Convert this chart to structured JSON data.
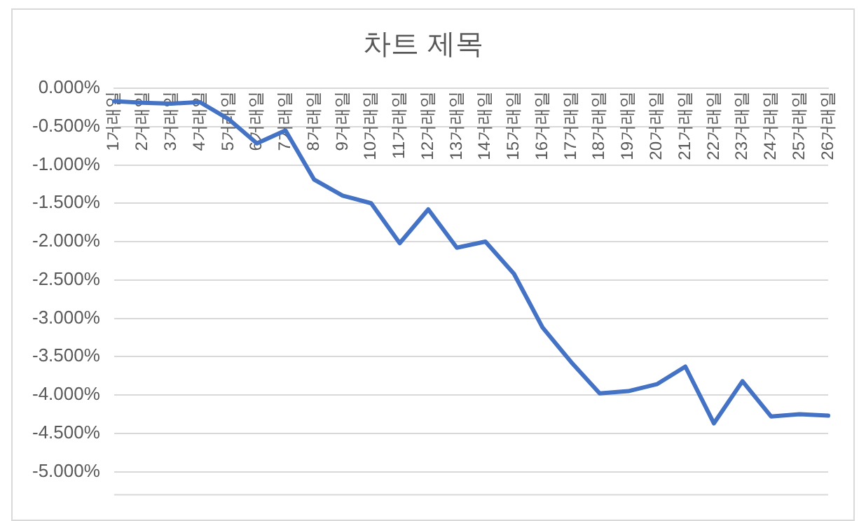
{
  "chart_data": {
    "type": "line",
    "title": "차트 제목",
    "categories": [
      "1거래일",
      "2거래일",
      "3거래일",
      "4거래일",
      "5거래일",
      "6거래일",
      "7거래일",
      "8거래일",
      "9거래일",
      "10거래일",
      "11거래일",
      "12거래일",
      "13거래일",
      "14거래일",
      "15거래일",
      "16거래일",
      "17거래일",
      "18거래일",
      "19거래일",
      "20거래일",
      "21거래일",
      "22거래일",
      "23거래일",
      "24거래일",
      "25거래일",
      "26거래일"
    ],
    "series": [
      {
        "color": "#4472c4",
        "values": [
          -0.17,
          -0.19,
          -0.2,
          -0.18,
          -0.4,
          -0.72,
          -0.55,
          -1.19,
          -1.4,
          -1.5,
          -2.02,
          -1.58,
          -2.08,
          -2.0,
          -2.42,
          -3.12,
          -3.57,
          -3.98,
          -3.95,
          -3.86,
          -3.63,
          -4.37,
          -3.82,
          -4.28,
          -4.25,
          -4.27
        ]
      }
    ],
    "ylim": [
      -5.3,
      0
    ],
    "yticks": [
      {
        "value": 0,
        "label": "0.000%"
      },
      {
        "value": -0.5,
        "label": "-0.500%"
      },
      {
        "value": -1,
        "label": "-1.000%"
      },
      {
        "value": -1.5,
        "label": "-1.500%"
      },
      {
        "value": -2,
        "label": "-2.000%"
      },
      {
        "value": -2.5,
        "label": "-2.500%"
      },
      {
        "value": -3,
        "label": "-3.000%"
      },
      {
        "value": -3.5,
        "label": "-3.500%"
      },
      {
        "value": -4,
        "label": "-4.000%"
      },
      {
        "value": -4.5,
        "label": "-4.500%"
      },
      {
        "value": -5,
        "label": "-5.000%"
      }
    ],
    "grid": "y",
    "legend": false,
    "marker": "none",
    "line_style": "solid"
  }
}
